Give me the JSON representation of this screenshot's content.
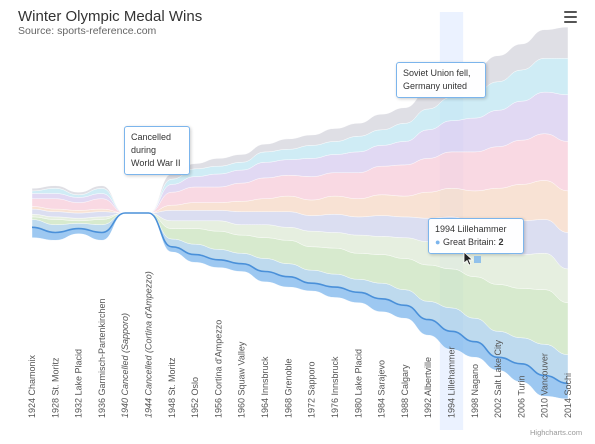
{
  "chart_data": {
    "type": "area",
    "title": "Winter Olympic Medal Wins",
    "subtitle": "Source: sports-reference.com",
    "categories": [
      "1924 Chamonix",
      "1928 St. Moritz",
      "1932 Lake Placid",
      "1936 Garmisch-Partenkirchen",
      "1940 Cancelled (Sapporo)",
      "1944 Cancelled (Cortina d'Ampezzo)",
      "1948 St. Moritz",
      "1952 Oslo",
      "1956 Cortina d'Ampezzo",
      "1960 Squaw Valley",
      "1964 Innsbruck",
      "1968 Grenoble",
      "1972 Sapporo",
      "1976 Innsbruck",
      "1980 Lake Placid",
      "1984 Sarajevo",
      "1988 Calgary",
      "1992 Albertville",
      "1994 Lillehammer",
      "1998 Nagano",
      "2002 Salt Lake City",
      "2006 Turin",
      "2010 Vancouver",
      "2014 Sochi"
    ],
    "italic_categories": [
      "1940 Cancelled (Sapporo)",
      "1944 Cancelled (Cortina d'Ampezzo)"
    ],
    "highlighted_category": "1994 Lillehammer",
    "series": [
      {
        "color": "#7cb5ec",
        "values": [
          4,
          3,
          2,
          3,
          0,
          0,
          2,
          3,
          3,
          3,
          4,
          4,
          3,
          4,
          4,
          5,
          5,
          6,
          7,
          6,
          5,
          7,
          8,
          6
        ]
      },
      {
        "color": "#a8cde8",
        "values": [
          3,
          3,
          2,
          3,
          0,
          0,
          3,
          4,
          4,
          4,
          5,
          5,
          5,
          5,
          5,
          6,
          6,
          7,
          9,
          9,
          10,
          10,
          12,
          11
        ]
      },
      {
        "color": "#c9e3bd",
        "values": [
          1,
          2,
          1,
          2,
          0,
          0,
          4,
          6,
          7,
          7,
          8,
          9,
          9,
          10,
          10,
          11,
          12,
          14,
          15,
          16,
          18,
          19,
          21,
          20
        ]
      },
      {
        "color": "#dde9d6",
        "values": [
          1,
          1,
          1,
          1,
          0,
          0,
          3,
          3,
          4,
          4,
          5,
          5,
          6,
          6,
          7,
          7,
          8,
          9,
          10,
          11,
          12,
          13,
          14,
          13
        ]
      },
      {
        "color": "#cfd3ec",
        "values": [
          2,
          2,
          2,
          2,
          0,
          0,
          4,
          4,
          4,
          5,
          5,
          6,
          6,
          7,
          7,
          8,
          8,
          9,
          10,
          10,
          12,
          13,
          13,
          14
        ]
      },
      {
        "color": "#f6d8c6",
        "values": [
          1,
          1,
          1,
          1,
          0,
          0,
          2,
          3,
          3,
          4,
          5,
          6,
          6,
          7,
          7,
          8,
          8,
          10,
          11,
          12,
          13,
          14,
          15,
          16
        ]
      },
      {
        "color": "#f7ccd9",
        "values": [
          3,
          4,
          3,
          4,
          0,
          0,
          5,
          6,
          6,
          7,
          8,
          8,
          9,
          9,
          10,
          11,
          12,
          13,
          14,
          15,
          16,
          17,
          18,
          19
        ]
      },
      {
        "color": "#d7ccef",
        "values": [
          2,
          2,
          2,
          2,
          0,
          0,
          3,
          4,
          5,
          5,
          6,
          6,
          7,
          7,
          8,
          8,
          9,
          11,
          12,
          13,
          14,
          15,
          16,
          18
        ]
      },
      {
        "color": "#bfe6f1",
        "values": [
          1,
          2,
          1,
          2,
          0,
          0,
          2,
          3,
          3,
          3,
          4,
          4,
          5,
          5,
          6,
          6,
          7,
          8,
          9,
          10,
          11,
          12,
          13,
          14
        ]
      },
      {
        "color": "#d4d4dc",
        "values": [
          1,
          1,
          1,
          1,
          0,
          0,
          2,
          2,
          3,
          3,
          3,
          4,
          4,
          5,
          5,
          6,
          6,
          7,
          8,
          9,
          10,
          10,
          11,
          12
        ]
      }
    ],
    "tooltip": {
      "line1": "1994 Lillehammer",
      "series_name": "Great Britain",
      "value": "2"
    },
    "annotations": [
      {
        "text": "Cancelled during World War II",
        "lines": [
          "Cancelled",
          "during",
          "World War II"
        ]
      },
      {
        "text": "Soviet Union fell, Germany united",
        "lines": [
          "Soviet Union fell,",
          "Germany united"
        ]
      }
    ],
    "legend": "none",
    "grid": false
  },
  "credits": "Highcharts.com",
  "menu_icon": "hamburger-menu-icon"
}
